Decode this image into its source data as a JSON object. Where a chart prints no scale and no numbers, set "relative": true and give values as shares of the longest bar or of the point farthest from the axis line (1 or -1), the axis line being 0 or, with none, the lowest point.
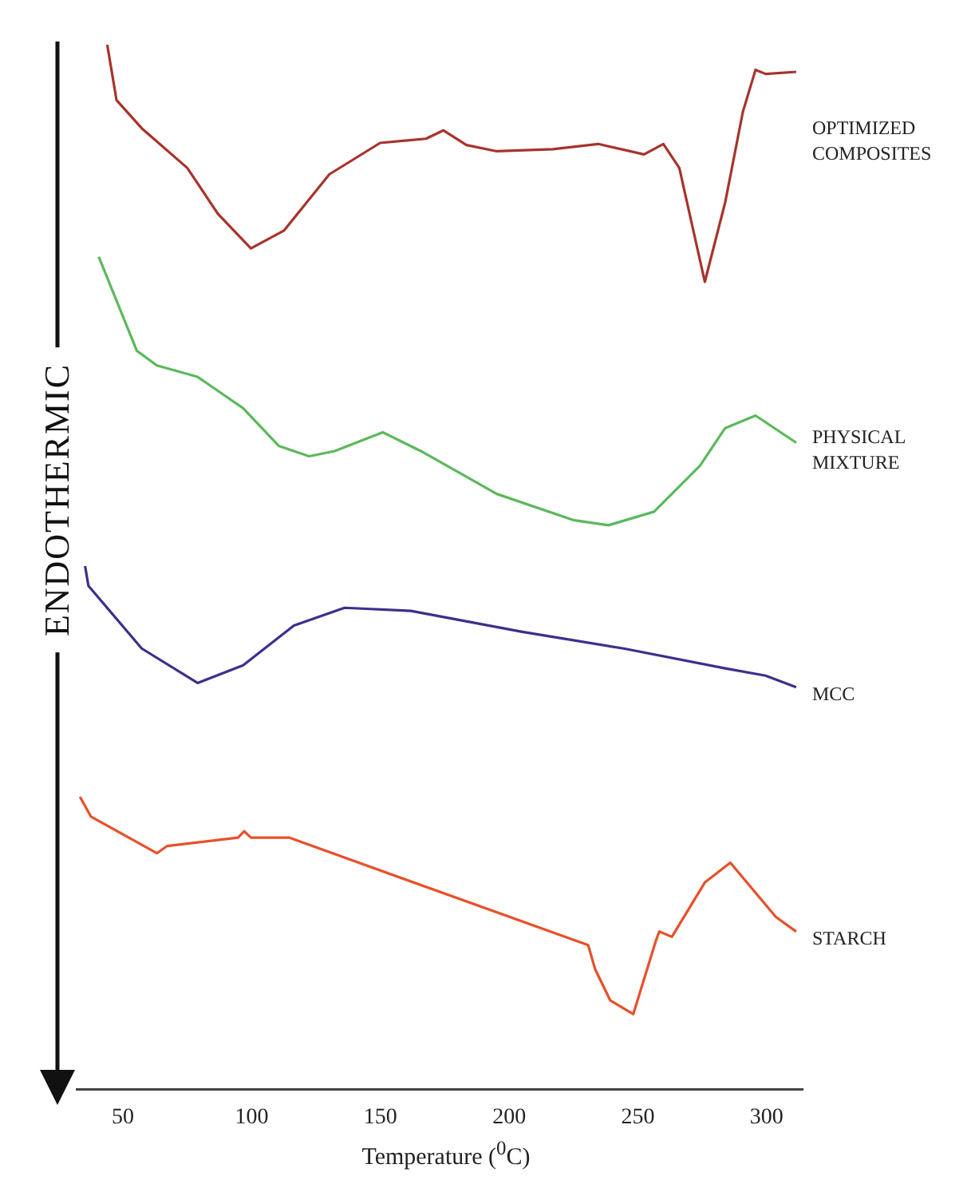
{
  "chart_data": {
    "type": "line",
    "relative": true,
    "xlabel": "Temperature ($^{0}$C)",
    "ylabel": "ENDOTHERMIC",
    "xlim": [
      32,
      314
    ],
    "xticks": [
      50,
      100,
      150,
      200,
      250,
      300
    ],
    "grid": false,
    "legend": false,
    "marker": "none",
    "line_style": "solid",
    "series": [
      {
        "name": "OPTIMIZED COMPOSITES",
        "color": "#a8332a",
        "x": [
          43.9,
          47.5,
          57.3,
          75,
          86.9,
          99.7,
          112.5,
          130.2,
          149.9,
          167.7,
          174.5,
          183.4,
          195.2,
          216.9,
          234.6,
          252.4,
          259.9,
          266.1,
          276,
          283.9,
          290.8,
          295.7,
          299.6,
          311.5
        ],
        "values": [
          1,
          0.947,
          0.92,
          0.882,
          0.838,
          0.805,
          0.822,
          0.876,
          0.906,
          0.91,
          0.918,
          0.904,
          0.898,
          0.9,
          0.905,
          0.895,
          0.905,
          0.882,
          0.773,
          0.849,
          0.936,
          0.976,
          0.972,
          0.974
        ]
      },
      {
        "name": "PHYSICAL MIXTURE",
        "color": "#5cb85c",
        "x": [
          40.6,
          55.4,
          63.2,
          79,
          96.7,
          110.5,
          122.3,
          132.2,
          150.9,
          165.7,
          195.2,
          224.8,
          238.6,
          256.3,
          274.1,
          283.9,
          295.7,
          311.5
        ],
        "values": [
          0.797,
          0.707,
          0.693,
          0.682,
          0.652,
          0.616,
          0.606,
          0.611,
          0.629,
          0.611,
          0.57,
          0.545,
          0.54,
          0.553,
          0.597,
          0.633,
          0.645,
          0.619
        ]
      },
      {
        "name": "MCC",
        "color": "#3d2f8c",
        "x": [
          35.3,
          36.6,
          57.3,
          79,
          96.7,
          116.4,
          136.1,
          161.8,
          205.1,
          244.5,
          283.9,
          299.6,
          311.5
        ],
        "values": [
          0.501,
          0.482,
          0.422,
          0.389,
          0.406,
          0.444,
          0.461,
          0.458,
          0.438,
          0.422,
          0.403,
          0.396,
          0.385
        ]
      },
      {
        "name": "STARCH",
        "color": "#e8502a",
        "x": [
          33.3,
          37.6,
          63.2,
          67.2,
          94.7,
          97.1,
          99.7,
          114.5,
          230.7,
          233.4,
          239.3,
          248.2,
          257.1,
          258.3,
          263.2,
          276,
          285.9,
          303.6,
          311.5
        ],
        "values": [
          0.28,
          0.261,
          0.226,
          0.233,
          0.241,
          0.247,
          0.241,
          0.241,
          0.138,
          0.115,
          0.085,
          0.072,
          0.143,
          0.151,
          0.146,
          0.198,
          0.217,
          0.165,
          0.151
        ]
      }
    ]
  }
}
